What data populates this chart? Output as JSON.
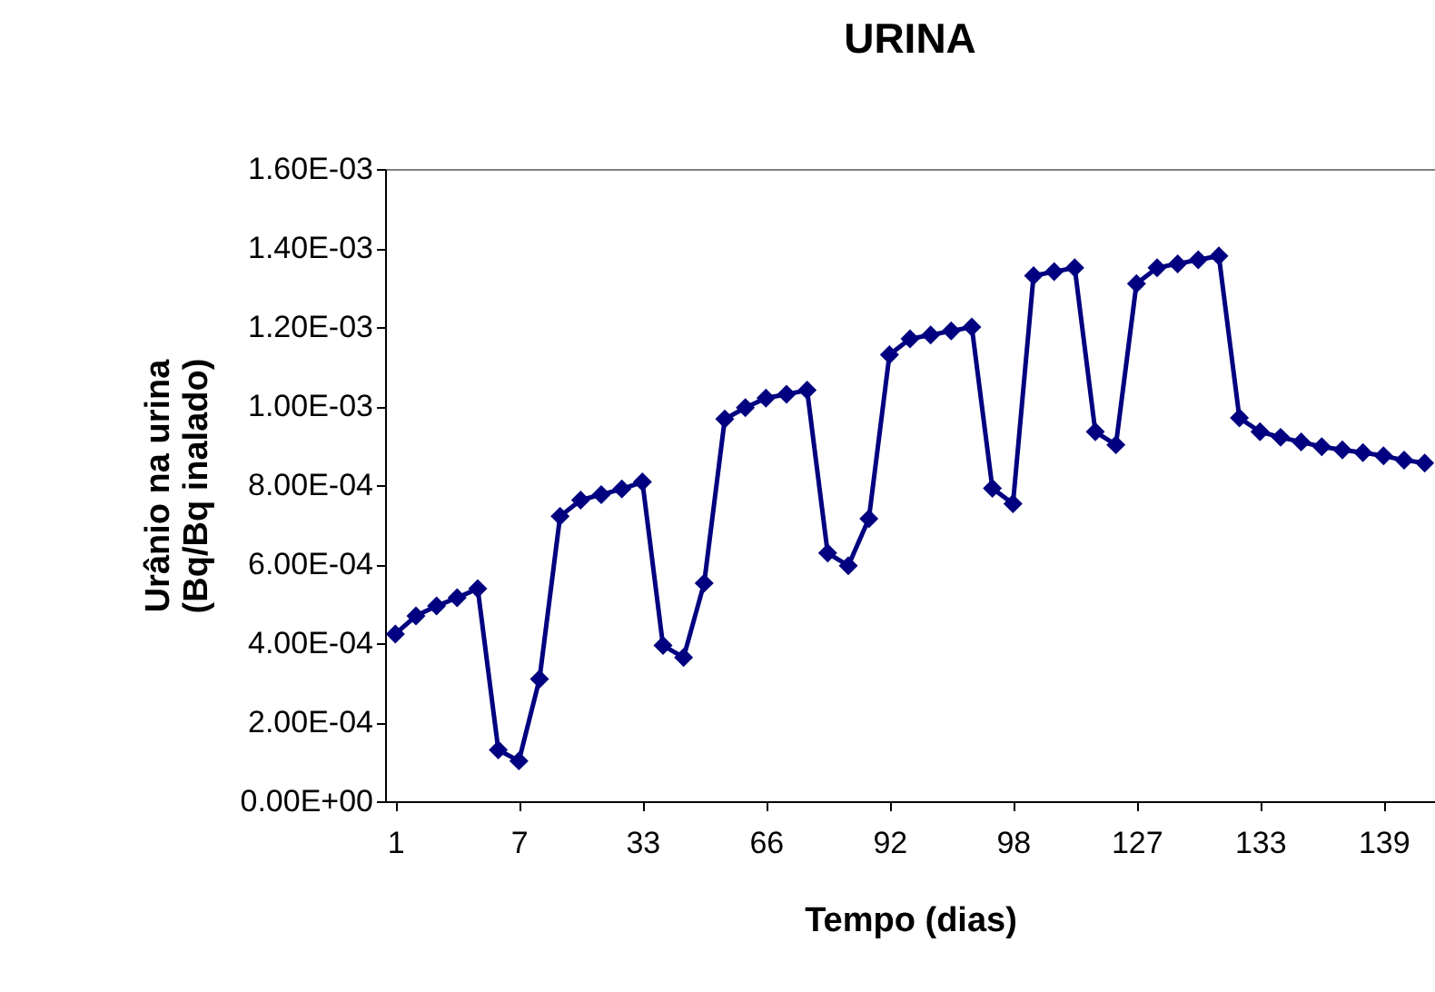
{
  "chart_data": {
    "type": "line",
    "title": "URINA",
    "xlabel": "Tempo (dias)",
    "ylabel": "Urânio na urina\n(Bq/Bq inalado)",
    "categories": [
      "1",
      null,
      null,
      null,
      null,
      null,
      "7",
      null,
      null,
      null,
      null,
      null,
      "33",
      null,
      null,
      null,
      null,
      null,
      "66",
      null,
      null,
      null,
      null,
      null,
      "92",
      null,
      null,
      null,
      null,
      null,
      "98",
      null,
      null,
      null,
      null,
      null,
      "127",
      null,
      null,
      null,
      null,
      null,
      "133",
      null,
      null,
      null,
      null,
      null,
      "139",
      null,
      null
    ],
    "values": [
      0.000423,
      0.000469,
      0.000494,
      0.000515,
      0.000538,
      0.00013,
      0.000102,
      0.000309,
      0.000721,
      0.000762,
      0.000776,
      0.00079,
      0.000808,
      0.000394,
      0.000364,
      0.000552,
      0.000967,
      0.000996,
      0.00102,
      0.00103,
      0.00104,
      0.000628,
      0.000596,
      0.000715,
      0.00113,
      0.00117,
      0.00118,
      0.00119,
      0.0012,
      0.000792,
      0.000753,
      0.00133,
      0.00134,
      0.00135,
      0.000935,
      0.000902,
      0.00131,
      0.00135,
      0.00136,
      0.00137,
      0.00138,
      0.00097,
      0.000935,
      0.000921,
      0.000909,
      0.000897,
      0.000889,
      0.000882,
      0.000874,
      0.000863,
      0.000856
    ],
    "color": "#000080",
    "marker": "diamond",
    "line_style": "solid",
    "ylim": [
      0,
      0.0016
    ],
    "yticks": [
      {
        "value": 0,
        "label": "0.00E+00"
      },
      {
        "value": 0.0002,
        "label": "2.00E-04"
      },
      {
        "value": 0.0004,
        "label": "4.00E-04"
      },
      {
        "value": 0.0006,
        "label": "6.00E-04"
      },
      {
        "value": 0.0008,
        "label": "8.00E-04"
      },
      {
        "value": 0.001,
        "label": "1.00E-03"
      },
      {
        "value": 0.0012,
        "label": "1.20E-03"
      },
      {
        "value": 0.0014,
        "label": "1.40E-03"
      },
      {
        "value": 0.0016,
        "label": "1.60E-03"
      }
    ]
  }
}
